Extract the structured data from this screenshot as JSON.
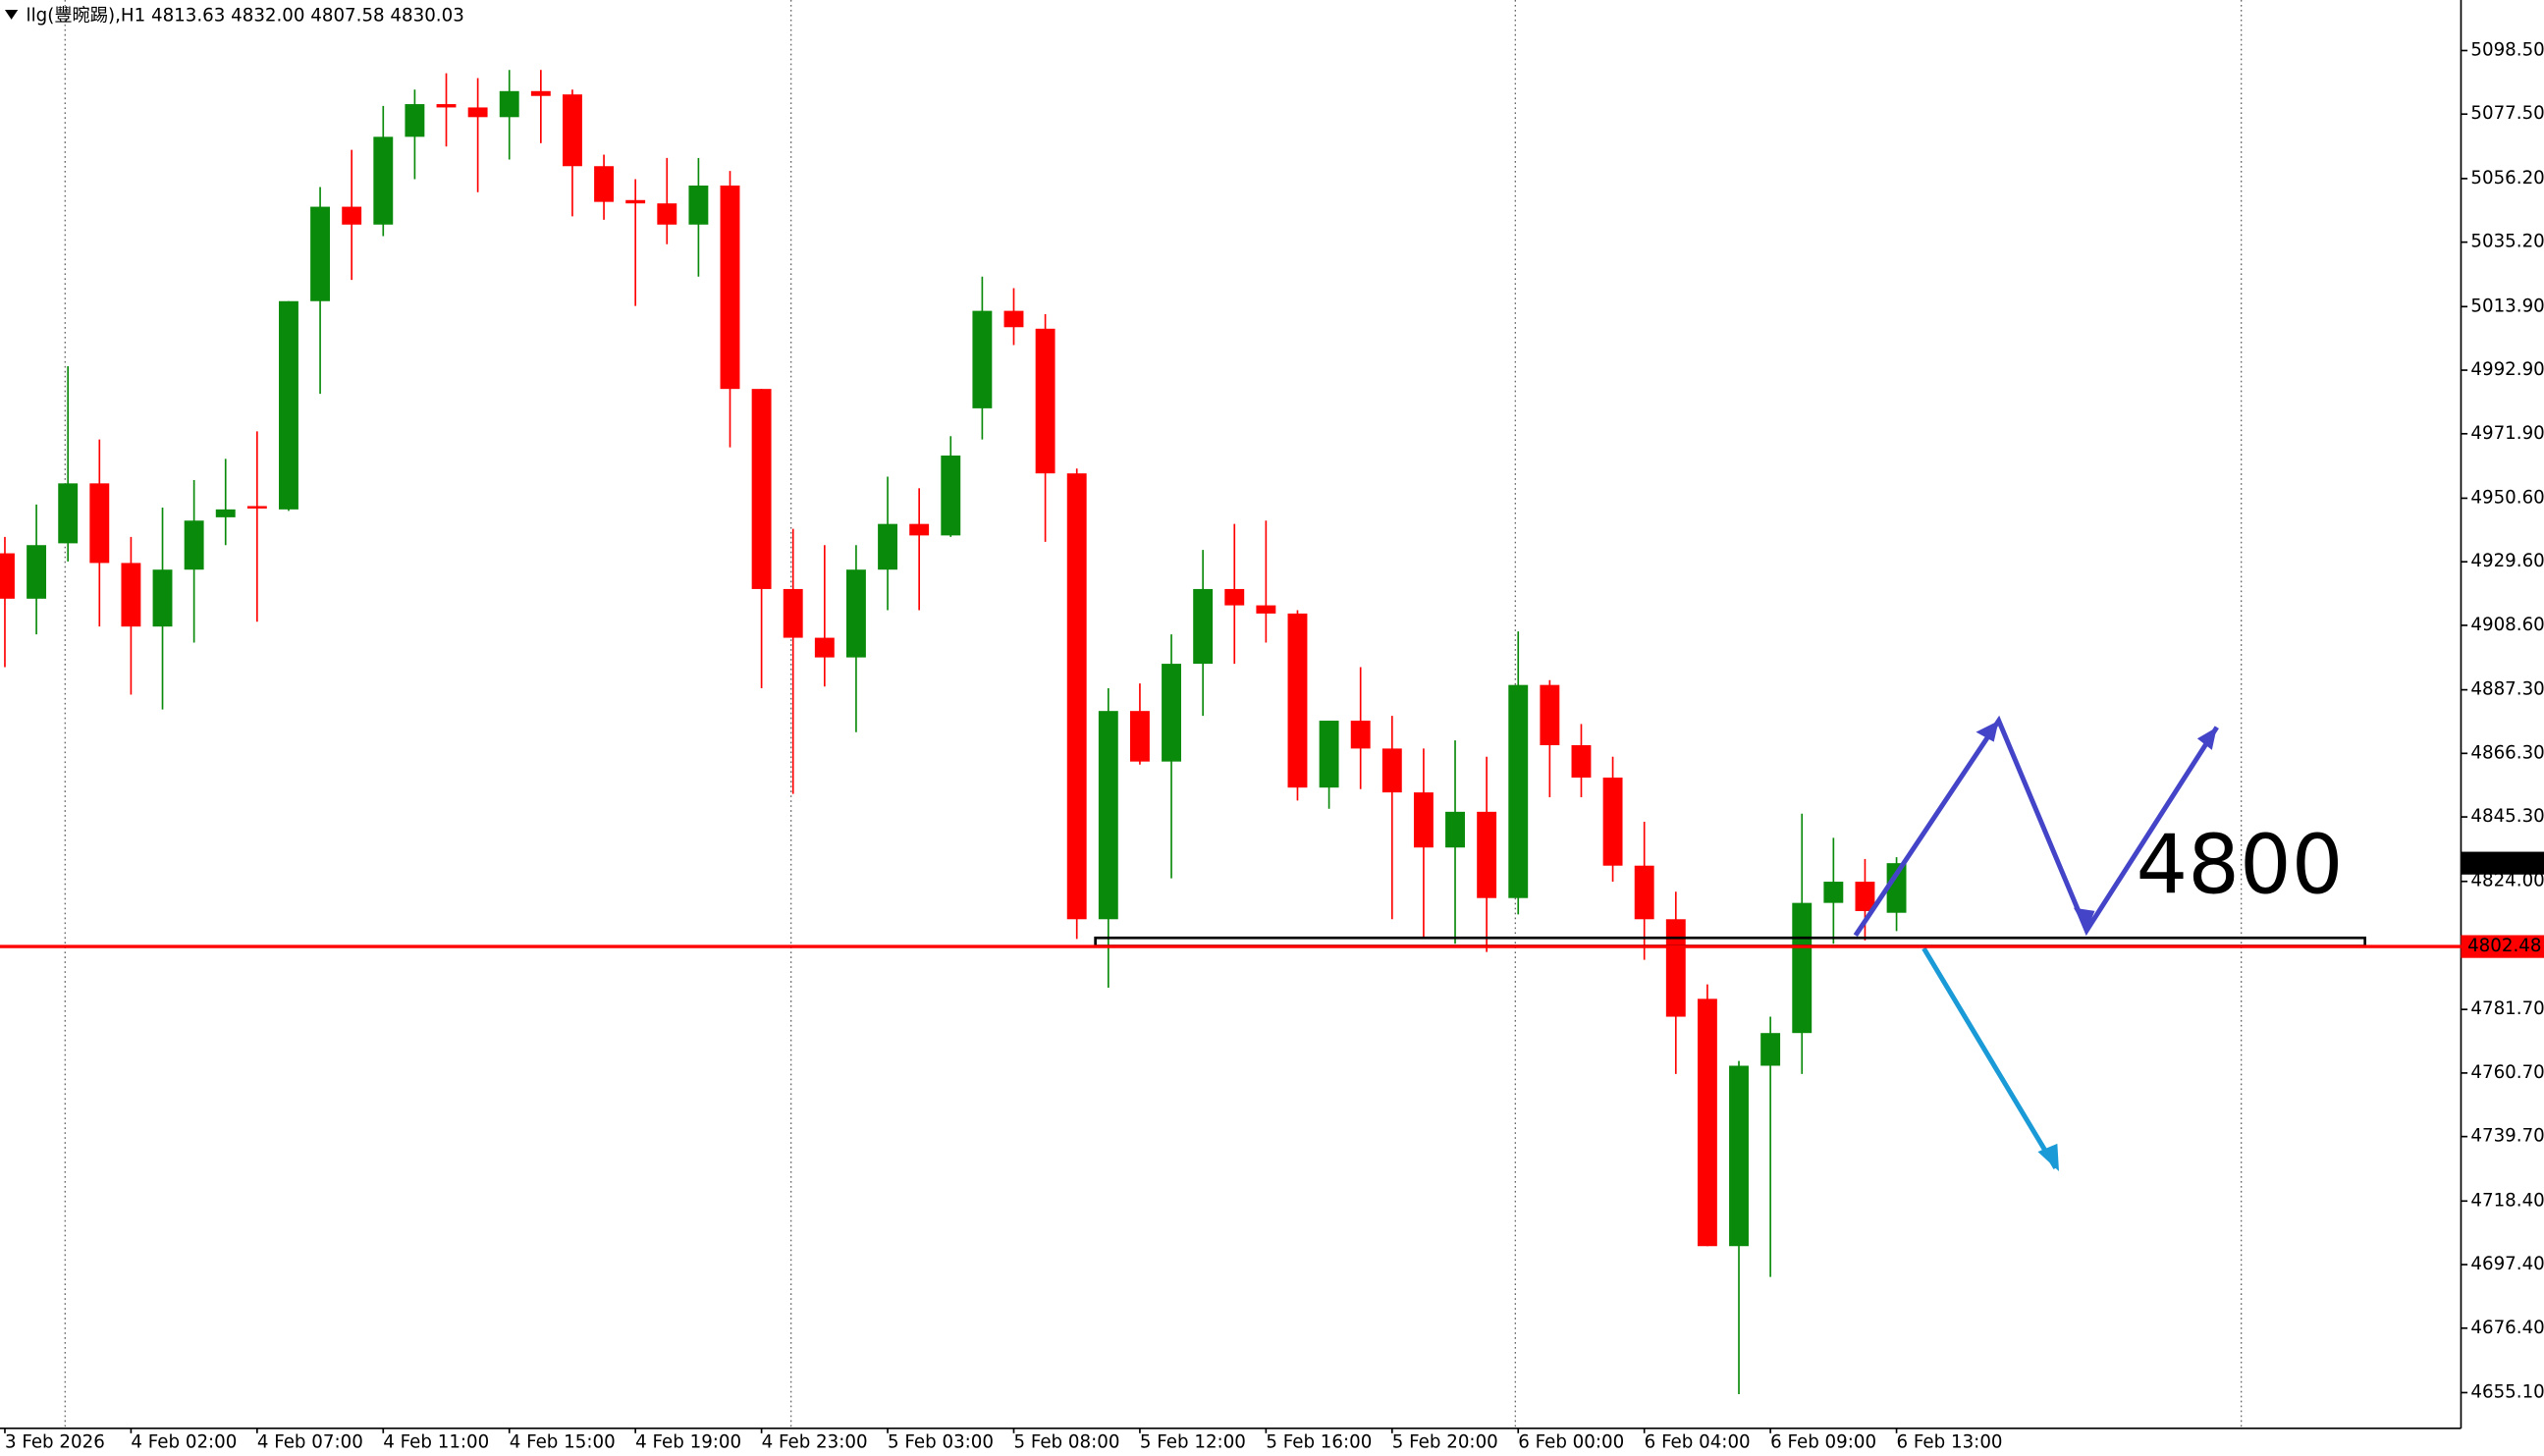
{
  "chart_data": {
    "type": "candlestick",
    "title": "llg(豐晼踢),H1  4813.63 4832.00 4807.58 4830.03",
    "annotation": "4800",
    "up_color": "#0a8a0a",
    "down_color": "#ff0000",
    "grid": false,
    "categories": [
      "3 Feb 2026",
      null,
      null,
      null,
      "4 Feb 02:00",
      null,
      null,
      null,
      "4 Feb 07:00",
      null,
      null,
      null,
      "4 Feb 11:00",
      null,
      null,
      null,
      "4 Feb 15:00",
      null,
      null,
      null,
      "4 Feb 19:00",
      null,
      null,
      null,
      "4 Feb 23:00",
      null,
      null,
      null,
      "5 Feb 03:00",
      null,
      null,
      null,
      "5 Feb 08:00",
      null,
      null,
      null,
      "5 Feb 12:00",
      null,
      null,
      null,
      "5 Feb 16:00",
      null,
      null,
      null,
      "5 Feb 20:00",
      null,
      null,
      null,
      "6 Feb 00:00",
      null,
      null,
      null,
      "6 Feb 04:00",
      null,
      null,
      null,
      "6 Feb 09:00",
      null,
      null,
      null,
      "6 Feb 13:00"
    ],
    "open": [
      4932.4,
      4917.4,
      4935.7,
      4955.5,
      4929.2,
      4908.2,
      4927.0,
      4944.3,
      4948.0,
      4946.9,
      5015.7,
      5046.9,
      5041.0,
      5070.0,
      5080.8,
      5079.7,
      5076.5,
      5085.1,
      5084.0,
      5060.3,
      5049.1,
      5048.0,
      5041.0,
      5053.9,
      4986.7,
      4920.6,
      4904.5,
      4898.0,
      4927.0,
      4942.1,
      4938.3,
      4980.3,
      5012.5,
      5006.6,
      4958.8,
      4811.5,
      4880.3,
      4863.6,
      4895.9,
      4920.6,
      4915.2,
      4912.5,
      4855.0,
      4877.1,
      4867.9,
      4853.4,
      4835.2,
      4847.0,
      4818.5,
      4888.9,
      4869.0,
      4858.3,
      4829.2,
      4811.5,
      4785.2,
      4703.5,
      4763.1,
      4773.9,
      4816.9,
      4823.9,
      4813.63
    ],
    "high": [
      4937.8,
      4948.5,
      4994.2,
      4970.0,
      4937.8,
      4947.5,
      4956.6,
      4963.6,
      4972.7,
      5015.7,
      5053.4,
      5065.7,
      5080.2,
      5085.6,
      5091.0,
      5089.4,
      5092.1,
      5092.1,
      5085.6,
      5064.1,
      5056.0,
      5063.0,
      5063.0,
      5058.7,
      4986.7,
      4940.5,
      4935.1,
      4935.1,
      4957.7,
      4953.9,
      4971.1,
      5023.8,
      5020.0,
      5011.4,
      4960.4,
      4887.8,
      4889.4,
      4905.6,
      4933.5,
      4942.1,
      4943.2,
      4913.6,
      4877.1,
      4894.8,
      4878.7,
      4867.9,
      4870.6,
      4865.2,
      4906.6,
      4890.5,
      4876.0,
      4865.2,
      4843.7,
      4820.6,
      4790.0,
      4764.7,
      4779.3,
      4846.4,
      4838.4,
      4831.4,
      4832
    ],
    "low": [
      4894.8,
      4905.6,
      4929.7,
      4908.2,
      4885.7,
      4880.8,
      4902.9,
      4935.1,
      4909.8,
      4946.4,
      4985.1,
      5022.7,
      5037.2,
      5056.0,
      5066.8,
      5051.7,
      5062.5,
      5067.9,
      5043.7,
      5042.6,
      5014.1,
      5034.5,
      5023.8,
      4967.4,
      4887.8,
      4852.9,
      4888.4,
      4873.3,
      4913.6,
      4913.6,
      4937.8,
      4970.0,
      5001.2,
      4936.2,
      4805.0,
      4788.9,
      4862.6,
      4825.0,
      4878.7,
      4895.9,
      4902.9,
      4850.7,
      4848.0,
      4854.5,
      4811.5,
      4805.0,
      4803.4,
      4800.7,
      4813.1,
      4851.8,
      4851.8,
      4823.9,
      4798.1,
      4760.4,
      4703.5,
      4654.6,
      4693.3,
      4760.4,
      4803.4,
      4804.5,
      4807.58
    ],
    "close": [
      4917.4,
      4935.1,
      4955.5,
      4929.2,
      4908.2,
      4927.0,
      4943.2,
      4946.9,
      4947.5,
      5015.7,
      5046.9,
      5041.0,
      5070.0,
      5080.8,
      5079.7,
      5076.5,
      5085.1,
      5083.5,
      5060.3,
      5048.5,
      5048.0,
      5041.0,
      5053.9,
      4986.7,
      4920.6,
      4904.5,
      4898.0,
      4927.0,
      4942.1,
      4938.3,
      4964.7,
      5012.5,
      5007.1,
      4958.8,
      4811.5,
      4880.3,
      4863.6,
      4895.9,
      4920.6,
      4915.2,
      4912.5,
      4855.0,
      4877.1,
      4867.9,
      4853.4,
      4835.2,
      4847.0,
      4818.5,
      4888.9,
      4869.0,
      4858.3,
      4829.2,
      4811.5,
      4779.3,
      4703.5,
      4763.1,
      4773.9,
      4816.9,
      4823.9,
      4814.2,
      4830.03
    ],
    "price_line": {
      "value": 4802.48,
      "color": "#ff0000"
    },
    "ylim": [
      4643.3,
      5115.2
    ],
    "yticks": [
      {
        "value": 4655.1,
        "label": "4655.10"
      },
      {
        "value": 4676.4,
        "label": "4676.40"
      },
      {
        "value": 4697.4,
        "label": "4697.40"
      },
      {
        "value": 4718.4,
        "label": "4718.40"
      },
      {
        "value": 4739.7,
        "label": "4739.70"
      },
      {
        "value": 4760.7,
        "label": "4760.70"
      },
      {
        "value": 4781.7,
        "label": "4781.70"
      },
      {
        "value": 4824,
        "label": "4824.00"
      },
      {
        "value": 4845.3,
        "label": "4845.30"
      },
      {
        "value": 4866.3,
        "label": "4866.30"
      },
      {
        "value": 4887.3,
        "label": "4887.30"
      },
      {
        "value": 4908.6,
        "label": "4908.60"
      },
      {
        "value": 4929.6,
        "label": "4929.60"
      },
      {
        "value": 4950.6,
        "label": "4950.60"
      },
      {
        "value": 4971.9,
        "label": "4971.90"
      },
      {
        "value": 4992.9,
        "label": "4992.90"
      },
      {
        "value": 5013.9,
        "label": "5013.90"
      },
      {
        "value": 5035.2,
        "label": "5035.20"
      },
      {
        "value": 5056.2,
        "label": "5056.20"
      },
      {
        "value": 5077.5,
        "label": "5077.50"
      },
      {
        "value": 5098.5,
        "label": "5098.50"
      }
    ]
  }
}
